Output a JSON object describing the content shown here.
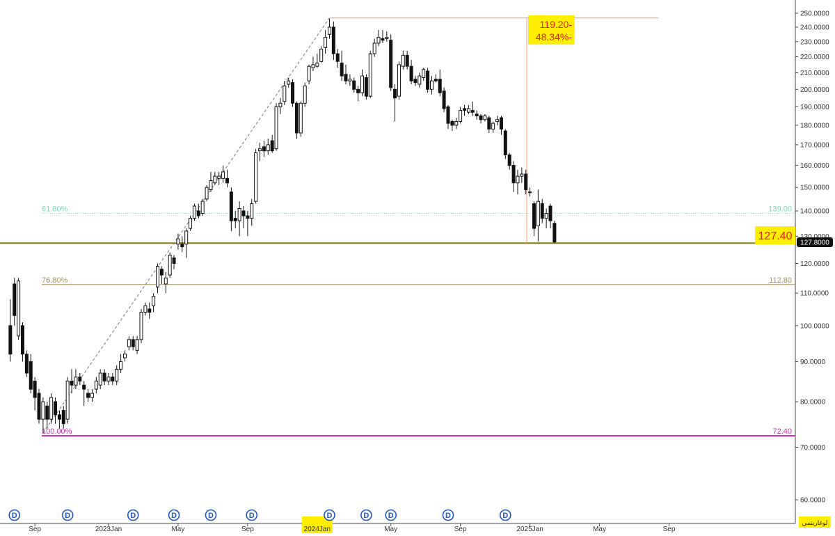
{
  "chart_data": {
    "type": "candlestick",
    "y_axis": {
      "scale": "log",
      "range": [
        58,
        255
      ],
      "ticks": [
        "250.0000",
        "240.0000",
        "230.0000",
        "220.0000",
        "210.0000",
        "200.0000",
        "190.0000",
        "180.0000",
        "170.0000",
        "160.0000",
        "150.0000",
        "140.0000",
        "130.0000",
        "120.0000",
        "110.0000",
        "100.0000",
        "90.0000",
        "80.0000",
        "70.0000",
        "60.0000"
      ],
      "tick_values": [
        250,
        240,
        230,
        220,
        210,
        200,
        190,
        180,
        170,
        160,
        150,
        140,
        130,
        120,
        110,
        100,
        90,
        80,
        70,
        60
      ],
      "position": "right"
    },
    "x_axis": {
      "labels": [
        "Sep",
        "2023Jan",
        "May",
        "Sep",
        "2024Jan",
        "May",
        "Sep",
        "2025Jan",
        "May",
        "Sep"
      ],
      "highlighted_label": "2024Jan",
      "label_weeks": [
        -1,
        17,
        34,
        51,
        68,
        86,
        103,
        120,
        137,
        154
      ]
    },
    "current_price": "127.8000",
    "price_box_label": "127.40",
    "drop_box": {
      "line1": "119.20-",
      "line2": "48.34%-"
    },
    "fibonacci": [
      {
        "pct": "61.80%",
        "value": "139.00",
        "price": 139.0,
        "color": "#7fd8b8",
        "style": "dotted"
      },
      {
        "pct": "76.80%",
        "value": "112.80",
        "price": 112.8,
        "color": "#a89060",
        "style": "solid"
      },
      {
        "pct": "100.00%",
        "value": "72.40",
        "price": 72.4,
        "color": "#d030b0",
        "style": "solid"
      }
    ],
    "support_line": {
      "price": 127.4,
      "color": "#8a7a00"
    },
    "peak_line": {
      "price": 246.6,
      "color": "#f0a070"
    },
    "dividend_marker": "D",
    "dividend_weeks": [
      -6,
      7,
      23,
      33,
      42,
      52,
      71,
      80,
      86,
      100,
      114
    ],
    "language_label": "لوغاريتمي",
    "candles": [
      {
        "w": -7,
        "o": 100,
        "c": 92,
        "h": 108,
        "l": 90
      },
      {
        "w": -6,
        "o": 113,
        "c": 103,
        "h": 115,
        "l": 100
      },
      {
        "w": -5,
        "o": 97,
        "c": 114,
        "h": 115,
        "l": 96
      },
      {
        "w": -4,
        "o": 100,
        "c": 92,
        "h": 101,
        "l": 90
      },
      {
        "w": -3,
        "o": 92,
        "c": 87,
        "h": 93,
        "l": 86
      },
      {
        "w": -2,
        "o": 90,
        "c": 83,
        "h": 92,
        "l": 82
      },
      {
        "w": -1,
        "o": 85,
        "c": 81,
        "h": 86,
        "l": 78
      },
      {
        "w": 0,
        "o": 82,
        "c": 76,
        "h": 83,
        "l": 75
      },
      {
        "w": 1,
        "o": 76,
        "c": 80,
        "h": 81,
        "l": 73
      },
      {
        "w": 2,
        "o": 79,
        "c": 76,
        "h": 80,
        "l": 74
      },
      {
        "w": 3,
        "o": 76,
        "c": 81,
        "h": 82,
        "l": 75
      },
      {
        "w": 4,
        "o": 80,
        "c": 77,
        "h": 81,
        "l": 75
      },
      {
        "w": 5,
        "o": 77,
        "c": 76,
        "h": 78,
        "l": 74
      },
      {
        "w": 6,
        "o": 78,
        "c": 75,
        "h": 79,
        "l": 74
      },
      {
        "w": 7,
        "o": 76,
        "c": 85,
        "h": 86,
        "l": 75
      },
      {
        "w": 8,
        "o": 85,
        "c": 84,
        "h": 88,
        "l": 82
      },
      {
        "w": 9,
        "o": 84,
        "c": 86,
        "h": 88,
        "l": 83
      },
      {
        "w": 10,
        "o": 86,
        "c": 85,
        "h": 87,
        "l": 84
      },
      {
        "w": 11,
        "o": 84,
        "c": 83,
        "h": 85,
        "l": 79
      },
      {
        "w": 12,
        "o": 82,
        "c": 81,
        "h": 83,
        "l": 80
      },
      {
        "w": 13,
        "o": 81,
        "c": 82,
        "h": 83,
        "l": 80
      },
      {
        "w": 14,
        "o": 83,
        "c": 85,
        "h": 86,
        "l": 82
      },
      {
        "w": 15,
        "o": 84,
        "c": 87,
        "h": 88,
        "l": 83
      },
      {
        "w": 16,
        "o": 87,
        "c": 85,
        "h": 88,
        "l": 84
      },
      {
        "w": 17,
        "o": 85,
        "c": 86,
        "h": 87,
        "l": 84
      },
      {
        "w": 18,
        "o": 86,
        "c": 85,
        "h": 87,
        "l": 84
      },
      {
        "w": 19,
        "o": 85,
        "c": 88,
        "h": 89,
        "l": 84
      },
      {
        "w": 20,
        "o": 88,
        "c": 90,
        "h": 92,
        "l": 87
      },
      {
        "w": 21,
        "o": 91,
        "c": 92,
        "h": 93,
        "l": 90
      },
      {
        "w": 22,
        "o": 94,
        "c": 96,
        "h": 97,
        "l": 93
      },
      {
        "w": 23,
        "o": 96,
        "c": 94,
        "h": 97,
        "l": 93
      },
      {
        "w": 24,
        "o": 93,
        "c": 96,
        "h": 97,
        "l": 92
      },
      {
        "w": 25,
        "o": 96,
        "c": 104,
        "h": 105,
        "l": 95
      },
      {
        "w": 26,
        "o": 104,
        "c": 106,
        "h": 107,
        "l": 103
      },
      {
        "w": 27,
        "o": 105,
        "c": 104,
        "h": 107,
        "l": 102
      },
      {
        "w": 28,
        "o": 106,
        "c": 109,
        "h": 110,
        "l": 104
      },
      {
        "w": 29,
        "o": 112,
        "c": 119,
        "h": 120,
        "l": 110
      },
      {
        "w": 30,
        "o": 118,
        "c": 116,
        "h": 119,
        "l": 113
      },
      {
        "w": 31,
        "o": 113,
        "c": 115,
        "h": 117,
        "l": 110
      },
      {
        "w": 32,
        "o": 116,
        "c": 123,
        "h": 124,
        "l": 115
      },
      {
        "w": 33,
        "o": 122,
        "c": 120,
        "h": 123,
        "l": 118
      },
      {
        "w": 34,
        "o": 127,
        "c": 129,
        "h": 131,
        "l": 125
      },
      {
        "w": 35,
        "o": 127,
        "c": 126,
        "h": 130,
        "l": 124
      },
      {
        "w": 36,
        "o": 127,
        "c": 132,
        "h": 133,
        "l": 122
      },
      {
        "w": 37,
        "o": 133,
        "c": 137,
        "h": 138,
        "l": 132
      },
      {
        "w": 38,
        "o": 137,
        "c": 142,
        "h": 143,
        "l": 136
      },
      {
        "w": 39,
        "o": 140,
        "c": 138,
        "h": 143,
        "l": 137
      },
      {
        "w": 40,
        "o": 139,
        "c": 144,
        "h": 145,
        "l": 138
      },
      {
        "w": 41,
        "o": 145,
        "c": 150,
        "h": 151,
        "l": 144
      },
      {
        "w": 42,
        "o": 149,
        "c": 153,
        "h": 157,
        "l": 148
      },
      {
        "w": 43,
        "o": 152,
        "c": 155,
        "h": 157,
        "l": 151
      },
      {
        "w": 44,
        "o": 154,
        "c": 155,
        "h": 157,
        "l": 151
      },
      {
        "w": 45,
        "o": 154,
        "c": 157,
        "h": 160,
        "l": 152
      },
      {
        "w": 46,
        "o": 154,
        "c": 152,
        "h": 158,
        "l": 150
      },
      {
        "w": 47,
        "o": 148,
        "c": 136,
        "h": 150,
        "l": 132
      },
      {
        "w": 48,
        "o": 137,
        "c": 136,
        "h": 140,
        "l": 133
      },
      {
        "w": 49,
        "o": 136,
        "c": 141,
        "h": 144,
        "l": 130
      },
      {
        "w": 50,
        "o": 140,
        "c": 138,
        "h": 142,
        "l": 133
      },
      {
        "w": 51,
        "o": 138,
        "c": 137,
        "h": 140,
        "l": 130
      },
      {
        "w": 52,
        "o": 137,
        "c": 143,
        "h": 145,
        "l": 134
      },
      {
        "w": 53,
        "o": 144,
        "c": 166,
        "h": 168,
        "l": 143
      },
      {
        "w": 54,
        "o": 167,
        "c": 168,
        "h": 171,
        "l": 162
      },
      {
        "w": 55,
        "o": 169,
        "c": 167,
        "h": 172,
        "l": 164
      },
      {
        "w": 56,
        "o": 167,
        "c": 170,
        "h": 173,
        "l": 165
      },
      {
        "w": 57,
        "o": 172,
        "c": 167,
        "h": 175,
        "l": 166
      },
      {
        "w": 58,
        "o": 168,
        "c": 190,
        "h": 192,
        "l": 167
      },
      {
        "w": 59,
        "o": 190,
        "c": 192,
        "h": 195,
        "l": 186
      },
      {
        "w": 60,
        "o": 193,
        "c": 202,
        "h": 205,
        "l": 191
      },
      {
        "w": 61,
        "o": 203,
        "c": 205,
        "h": 207,
        "l": 201
      },
      {
        "w": 62,
        "o": 204,
        "c": 192,
        "h": 206,
        "l": 190
      },
      {
        "w": 63,
        "o": 192,
        "c": 176,
        "h": 193,
        "l": 173
      },
      {
        "w": 64,
        "o": 176,
        "c": 192,
        "h": 193,
        "l": 174
      },
      {
        "w": 65,
        "o": 192,
        "c": 202,
        "h": 204,
        "l": 190
      },
      {
        "w": 66,
        "o": 205,
        "c": 214,
        "h": 215,
        "l": 203
      },
      {
        "w": 67,
        "o": 213,
        "c": 215,
        "h": 220,
        "l": 211
      },
      {
        "w": 68,
        "o": 214,
        "c": 216,
        "h": 222,
        "l": 213
      },
      {
        "w": 69,
        "o": 217,
        "c": 225,
        "h": 227,
        "l": 216
      },
      {
        "w": 70,
        "o": 226,
        "c": 233,
        "h": 238,
        "l": 222
      },
      {
        "w": 71,
        "o": 235,
        "c": 240,
        "h": 246,
        "l": 232
      },
      {
        "w": 72,
        "o": 240,
        "c": 222,
        "h": 244,
        "l": 218
      },
      {
        "w": 73,
        "o": 222,
        "c": 217,
        "h": 225,
        "l": 213
      },
      {
        "w": 74,
        "o": 216,
        "c": 208,
        "h": 224,
        "l": 205
      },
      {
        "w": 75,
        "o": 209,
        "c": 205,
        "h": 215,
        "l": 203
      },
      {
        "w": 76,
        "o": 205,
        "c": 206,
        "h": 209,
        "l": 202
      },
      {
        "w": 77,
        "o": 205,
        "c": 200,
        "h": 207,
        "l": 198
      },
      {
        "w": 78,
        "o": 200,
        "c": 198,
        "h": 202,
        "l": 193
      },
      {
        "w": 79,
        "o": 198,
        "c": 208,
        "h": 212,
        "l": 196
      },
      {
        "w": 80,
        "o": 207,
        "c": 196,
        "h": 209,
        "l": 194
      },
      {
        "w": 81,
        "o": 196,
        "c": 222,
        "h": 224,
        "l": 195
      },
      {
        "w": 82,
        "o": 222,
        "c": 229,
        "h": 232,
        "l": 220
      },
      {
        "w": 83,
        "o": 229,
        "c": 233,
        "h": 238,
        "l": 227
      },
      {
        "w": 84,
        "o": 232,
        "c": 231,
        "h": 238,
        "l": 229
      },
      {
        "w": 85,
        "o": 232,
        "c": 233,
        "h": 237,
        "l": 230
      },
      {
        "w": 86,
        "o": 231,
        "c": 201,
        "h": 235,
        "l": 199
      },
      {
        "w": 87,
        "o": 200,
        "c": 195,
        "h": 203,
        "l": 182
      },
      {
        "w": 88,
        "o": 196,
        "c": 215,
        "h": 217,
        "l": 194
      },
      {
        "w": 89,
        "o": 214,
        "c": 221,
        "h": 224,
        "l": 212
      },
      {
        "w": 90,
        "o": 221,
        "c": 214,
        "h": 224,
        "l": 212
      },
      {
        "w": 91,
        "o": 214,
        "c": 205,
        "h": 218,
        "l": 203
      },
      {
        "w": 92,
        "o": 206,
        "c": 204,
        "h": 208,
        "l": 202
      },
      {
        "w": 93,
        "o": 203,
        "c": 208,
        "h": 210,
        "l": 201
      },
      {
        "w": 94,
        "o": 207,
        "c": 212,
        "h": 213,
        "l": 205
      },
      {
        "w": 95,
        "o": 211,
        "c": 200,
        "h": 213,
        "l": 198
      },
      {
        "w": 96,
        "o": 200,
        "c": 205,
        "h": 208,
        "l": 197
      },
      {
        "w": 97,
        "o": 206,
        "c": 205,
        "h": 209,
        "l": 204
      },
      {
        "w": 98,
        "o": 206,
        "c": 198,
        "h": 212,
        "l": 196
      },
      {
        "w": 99,
        "o": 199,
        "c": 189,
        "h": 201,
        "l": 187
      },
      {
        "w": 100,
        "o": 190,
        "c": 181,
        "h": 191,
        "l": 178
      },
      {
        "w": 101,
        "o": 182,
        "c": 180,
        "h": 183,
        "l": 177
      },
      {
        "w": 102,
        "o": 180,
        "c": 182,
        "h": 184,
        "l": 178
      },
      {
        "w": 103,
        "o": 182,
        "c": 188,
        "h": 190,
        "l": 181
      },
      {
        "w": 104,
        "o": 189,
        "c": 188,
        "h": 191,
        "l": 185
      },
      {
        "w": 105,
        "o": 187,
        "c": 189,
        "h": 191,
        "l": 186
      },
      {
        "w": 106,
        "o": 188,
        "c": 187,
        "h": 193,
        "l": 185
      },
      {
        "w": 107,
        "o": 186,
        "c": 185,
        "h": 188,
        "l": 183
      },
      {
        "w": 108,
        "o": 185,
        "c": 183,
        "h": 186,
        "l": 181
      },
      {
        "w": 109,
        "o": 183,
        "c": 185,
        "h": 186,
        "l": 182
      },
      {
        "w": 110,
        "o": 184,
        "c": 178,
        "h": 185,
        "l": 176
      },
      {
        "w": 111,
        "o": 178,
        "c": 181,
        "h": 182,
        "l": 176
      },
      {
        "w": 112,
        "o": 182,
        "c": 183,
        "h": 185,
        "l": 180
      },
      {
        "w": 113,
        "o": 184,
        "c": 178,
        "h": 185,
        "l": 175
      },
      {
        "w": 114,
        "o": 177,
        "c": 165,
        "h": 178,
        "l": 163
      },
      {
        "w": 115,
        "o": 165,
        "c": 160,
        "h": 166,
        "l": 158
      },
      {
        "w": 116,
        "o": 160,
        "c": 152,
        "h": 162,
        "l": 148
      },
      {
        "w": 117,
        "o": 152,
        "c": 155,
        "h": 158,
        "l": 147
      },
      {
        "w": 118,
        "o": 155,
        "c": 156,
        "h": 159,
        "l": 152
      },
      {
        "w": 119,
        "o": 156,
        "c": 149,
        "h": 158,
        "l": 147
      },
      {
        "w": 120,
        "o": 148,
        "c": 148,
        "h": 150,
        "l": 146
      },
      {
        "w": 121,
        "o": 143,
        "c": 133,
        "h": 144,
        "l": 130
      },
      {
        "w": 122,
        "o": 134,
        "c": 144,
        "h": 149,
        "l": 128
      },
      {
        "w": 123,
        "o": 143,
        "c": 137,
        "h": 145,
        "l": 135
      },
      {
        "w": 124,
        "o": 137,
        "c": 139,
        "h": 141,
        "l": 133
      },
      {
        "w": 125,
        "o": 142,
        "c": 136,
        "h": 143,
        "l": 133
      },
      {
        "w": 126,
        "o": 135,
        "c": 127.8,
        "h": 136,
        "l": 127.4
      }
    ]
  }
}
